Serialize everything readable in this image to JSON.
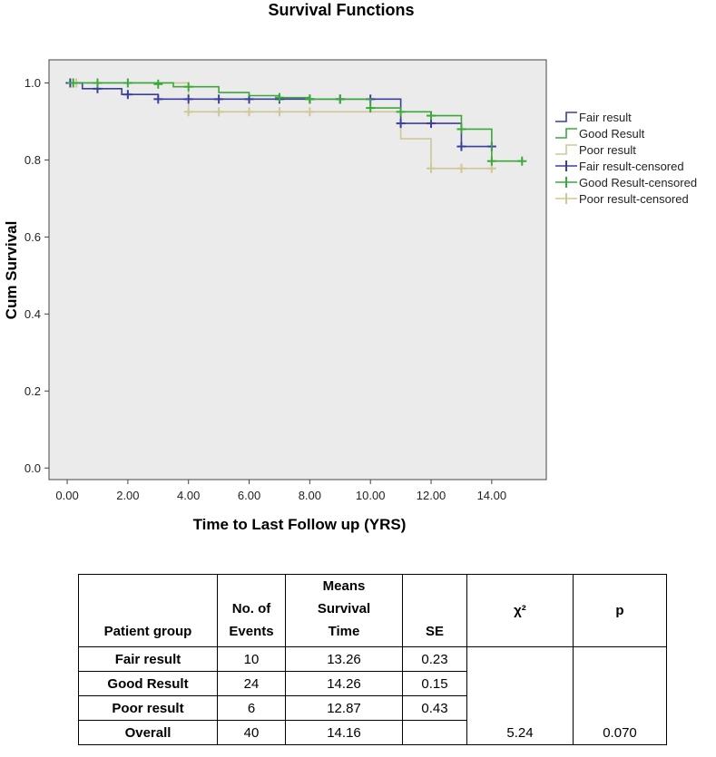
{
  "chart_data": {
    "type": "line",
    "subtype": "kaplan-meier-step",
    "title": "Survival Functions",
    "xlabel": "Time to Last Follow up (YRS)",
    "ylabel": "Cum Survival",
    "xlim": [
      -0.6,
      15.8
    ],
    "ylim": [
      -0.03,
      1.06
    ],
    "x_ticks": [
      0,
      2,
      4,
      6,
      8,
      10,
      12,
      14
    ],
    "x_tick_labels": [
      "0.00",
      "2.00",
      "4.00",
      "6.00",
      "8.00",
      "10.00",
      "12.00",
      "14.00"
    ],
    "y_ticks": [
      0,
      0.2,
      0.4,
      0.6,
      0.8,
      1.0
    ],
    "y_tick_labels": [
      "0.0",
      "0.2",
      "0.4",
      "0.6",
      "0.8",
      "1.0"
    ],
    "grid": false,
    "legend_position": "right",
    "series": [
      {
        "name": "Fair result",
        "color": "#3b3f9c",
        "steps": [
          [
            0,
            1.0
          ],
          [
            0.5,
            0.985
          ],
          [
            1.8,
            0.97
          ],
          [
            3.0,
            0.958
          ],
          [
            11.0,
            0.895
          ],
          [
            13.0,
            0.835
          ],
          [
            14.0,
            0.835
          ]
        ],
        "censored_name": "Fair result-censored",
        "censored": [
          [
            0.1,
            1.0
          ],
          [
            1,
            0.985
          ],
          [
            2,
            0.97
          ],
          [
            3,
            0.958
          ],
          [
            4,
            0.958
          ],
          [
            5,
            0.958
          ],
          [
            6,
            0.958
          ],
          [
            7,
            0.958
          ],
          [
            8,
            0.958
          ],
          [
            9,
            0.958
          ],
          [
            10,
            0.958
          ],
          [
            11,
            0.895
          ],
          [
            12,
            0.895
          ],
          [
            13,
            0.835
          ],
          [
            14,
            0.835
          ]
        ]
      },
      {
        "name": "Good Result",
        "color": "#3aa83a",
        "steps": [
          [
            0,
            1.0
          ],
          [
            3.5,
            0.99
          ],
          [
            5.0,
            0.975
          ],
          [
            6.0,
            0.967
          ],
          [
            7.0,
            0.962
          ],
          [
            8.0,
            0.958
          ],
          [
            10.0,
            0.935
          ],
          [
            11.0,
            0.925
          ],
          [
            12.0,
            0.915
          ],
          [
            13.0,
            0.88
          ],
          [
            14.0,
            0.797
          ],
          [
            15.0,
            0.797
          ]
        ],
        "censored_name": "Good Result-censored",
        "censored": [
          [
            0.2,
            1.0
          ],
          [
            1,
            1.0
          ],
          [
            2,
            1.0
          ],
          [
            3,
            0.997
          ],
          [
            4,
            0.99
          ],
          [
            7,
            0.962
          ],
          [
            8,
            0.958
          ],
          [
            9,
            0.958
          ],
          [
            10,
            0.935
          ],
          [
            11,
            0.925
          ],
          [
            12,
            0.915
          ],
          [
            13,
            0.88
          ],
          [
            14,
            0.797
          ],
          [
            15,
            0.797
          ]
        ]
      },
      {
        "name": "Poor result",
        "color": "#cfc796",
        "steps": [
          [
            0,
            1.0
          ],
          [
            4.0,
            0.925
          ],
          [
            10.0,
            0.925
          ],
          [
            11.0,
            0.855
          ],
          [
            12.0,
            0.778
          ],
          [
            14.0,
            0.778
          ]
        ],
        "censored_name": "Poor result-censored",
        "censored": [
          [
            0.3,
            1.0
          ],
          [
            4,
            0.925
          ],
          [
            5,
            0.925
          ],
          [
            6,
            0.925
          ],
          [
            7,
            0.925
          ],
          [
            8,
            0.925
          ],
          [
            12,
            0.778
          ],
          [
            13,
            0.778
          ],
          [
            14,
            0.778
          ]
        ]
      }
    ]
  },
  "table": {
    "headers": {
      "group": "Patient group",
      "events_1": "No. of",
      "events_2": "Events",
      "means_1": "Means",
      "means_2": "Survival",
      "means_3": "Time",
      "se": "SE",
      "chi": "χ²",
      "p": "p"
    },
    "rows": [
      {
        "group": "Fair result",
        "events": "10",
        "means": "13.26",
        "se": "0.23"
      },
      {
        "group": "Good Result",
        "events": "24",
        "means": "14.26",
        "se": "0.15"
      },
      {
        "group": "Poor result",
        "events": "6",
        "means": "12.87",
        "se": "0.43"
      }
    ],
    "overall": {
      "group": "Overall",
      "events": "40",
      "means": "14.16",
      "se": "",
      "chi": "5.24",
      "p": "0.070"
    }
  }
}
